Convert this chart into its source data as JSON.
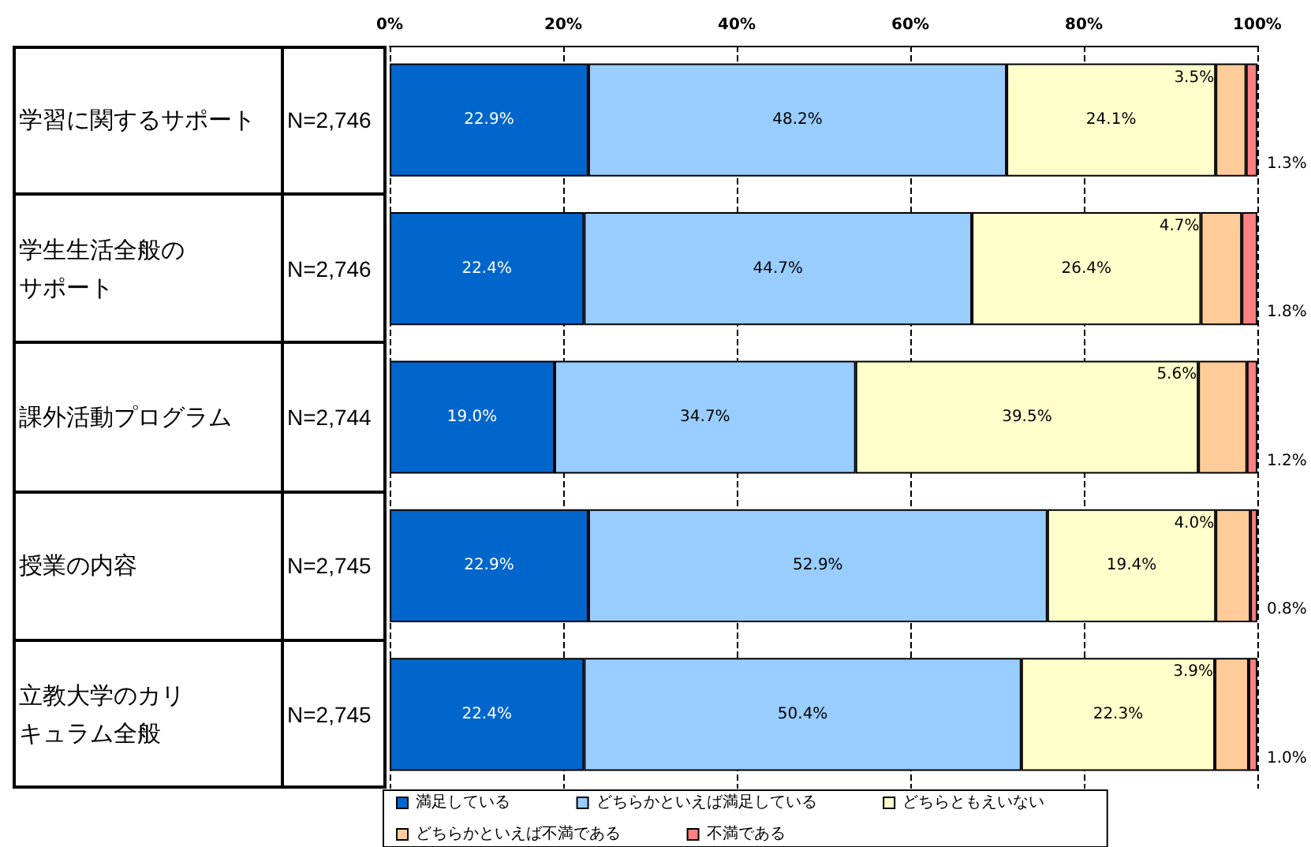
{
  "chart_data": {
    "type": "bar",
    "orientation": "horizontal",
    "stacked": true,
    "categories": [
      "学習に関するサポート",
      "学生生活全般のサポート",
      "課外活動プログラム",
      "授業の内容",
      "立教大学のカリキュラム全般"
    ],
    "y2_categories": [
      "N=2,746",
      "N=2,746",
      "N=2,744",
      "N=2,745",
      "N=2,745"
    ],
    "series": [
      {
        "name": "満足している",
        "color": "#0066cc",
        "values": [
          22.9,
          22.4,
          19.0,
          22.9,
          22.4
        ],
        "value_labels": [
          "22.9%",
          "22.4%",
          "19.0%",
          "22.9%",
          "22.4%"
        ]
      },
      {
        "name": "どちらかといえば満足している",
        "color": "#99ccff",
        "values": [
          48.2,
          44.7,
          34.7,
          52.9,
          50.4
        ],
        "value_labels": [
          "48.2%",
          "44.7%",
          "34.7%",
          "52.9%",
          "50.4%"
        ]
      },
      {
        "name": "どちらともえいない",
        "color": "#ffffcc",
        "values": [
          24.1,
          26.4,
          39.5,
          19.4,
          22.3
        ],
        "value_labels": [
          "24.1%",
          "26.4%",
          "39.5%",
          "19.4%",
          "22.3%"
        ]
      },
      {
        "name": "どちらかといえば不満である",
        "color": "#ffcc99",
        "values": [
          3.5,
          4.7,
          5.6,
          4.0,
          3.9
        ],
        "value_labels": [
          "3.5%",
          "4.7%",
          "5.6%",
          "4.0%",
          "3.9%"
        ]
      },
      {
        "name": "不満である",
        "color": "#ff8080",
        "values": [
          1.3,
          1.8,
          1.2,
          0.8,
          1.0
        ],
        "value_labels": [
          "1.3%",
          "1.8%",
          "1.2%",
          "0.8%",
          "1.0%"
        ]
      }
    ],
    "xlim": [
      0,
      100
    ],
    "xticks": [
      {
        "value": 0,
        "label": "0%"
      },
      {
        "value": 20,
        "label": "20%"
      },
      {
        "value": 40,
        "label": "40%"
      },
      {
        "value": 60,
        "label": "60%"
      },
      {
        "value": 80,
        "label": "80%"
      },
      {
        "value": 100,
        "label": "100%"
      }
    ],
    "grid": "x",
    "legend": "bottom"
  }
}
